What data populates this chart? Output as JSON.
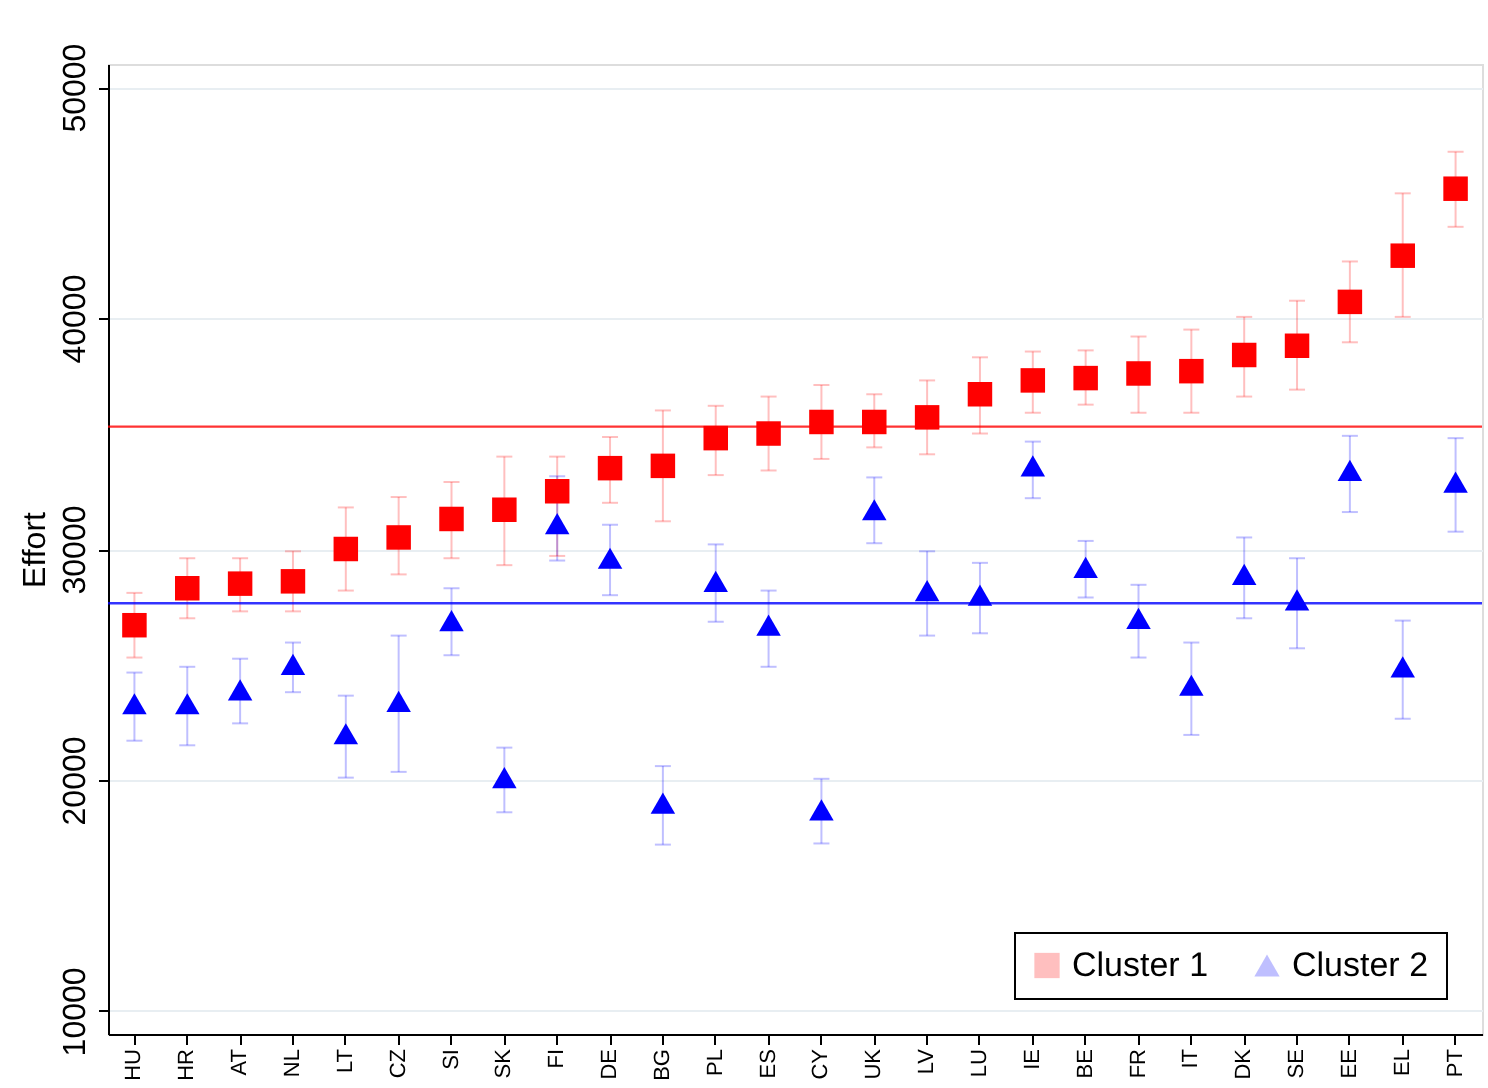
{
  "chart_data": {
    "type": "scatter",
    "ylabel": "Effort",
    "categories": [
      "HU",
      "HR",
      "AT",
      "NL",
      "LT",
      "CZ",
      "SI",
      "SK",
      "FI",
      "DE",
      "BG",
      "PL",
      "ES",
      "CY",
      "UK",
      "LV",
      "LU",
      "IE",
      "BE",
      "FR",
      "IT",
      "DK",
      "SE",
      "EE",
      "EL",
      "PT"
    ],
    "series": [
      {
        "name": "Cluster 1",
        "color": "#ff0000",
        "marker": "square",
        "values": [
          26700,
          28300,
          28500,
          28600,
          30000,
          30500,
          31300,
          31700,
          32500,
          33500,
          33600,
          34800,
          35000,
          35500,
          35500,
          35700,
          36700,
          37300,
          37400,
          37600,
          37700,
          38400,
          38800,
          40700,
          42700,
          45600
        ],
        "errors": [
          [
            25300,
            28100
          ],
          [
            27000,
            29600
          ],
          [
            27300,
            29600
          ],
          [
            27300,
            29900
          ],
          [
            28200,
            31800
          ],
          [
            28900,
            32250
          ],
          [
            29600,
            32900
          ],
          [
            29300,
            34000
          ],
          [
            29700,
            34000
          ],
          [
            32000,
            34850
          ],
          [
            31200,
            36000
          ],
          [
            33200,
            36200
          ],
          [
            33400,
            36600
          ],
          [
            33900,
            37100
          ],
          [
            34400,
            36700
          ],
          [
            34100,
            37300
          ],
          [
            35000,
            38300
          ],
          [
            35900,
            38550
          ],
          [
            36250,
            38600
          ],
          [
            35900,
            39200
          ],
          [
            35900,
            39500
          ],
          [
            36600,
            40050
          ],
          [
            36900,
            40750
          ],
          [
            38950,
            42450
          ],
          [
            40050,
            45400
          ],
          [
            43950,
            47200
          ]
        ]
      },
      {
        "name": "Cluster 2",
        "color": "#0000ff",
        "marker": "triangle",
        "values": [
          23300,
          23300,
          23900,
          25000,
          22000,
          23400,
          26900,
          20100,
          31100,
          29600,
          19000,
          28600,
          26700,
          18700,
          31700,
          28200,
          28000,
          33600,
          29200,
          27000,
          24100,
          28900,
          27800,
          33400,
          24900,
          32900
        ],
        "errors": [
          [
            21700,
            24650
          ],
          [
            21500,
            24900
          ],
          [
            22450,
            25250
          ],
          [
            23800,
            25950
          ],
          [
            20100,
            23650
          ],
          [
            20350,
            26250
          ],
          [
            25400,
            28300
          ],
          [
            18600,
            21400
          ],
          [
            29500,
            33150
          ],
          [
            28000,
            31050
          ],
          [
            17200,
            20600
          ],
          [
            26850,
            30200
          ],
          [
            24900,
            28200
          ],
          [
            17250,
            20050
          ],
          [
            30250,
            33100
          ],
          [
            26250,
            29900
          ],
          [
            26350,
            29400
          ],
          [
            32200,
            34650
          ],
          [
            27900,
            30350
          ],
          [
            25300,
            28450
          ],
          [
            21950,
            25950
          ],
          [
            27000,
            30500
          ],
          [
            25700,
            29600
          ],
          [
            31600,
            34900
          ],
          [
            22650,
            26900
          ],
          [
            30750,
            34800
          ]
        ]
      }
    ],
    "ref_lines": [
      {
        "axis": "y",
        "value": 35300,
        "color": "#ff0000"
      },
      {
        "axis": "y",
        "value": 27650,
        "color": "#0000ff"
      }
    ],
    "ylim": [
      9000,
      51000
    ],
    "yticks": [
      10000,
      20000,
      30000,
      40000,
      50000
    ],
    "grid": "y",
    "legend": "bottom right"
  }
}
